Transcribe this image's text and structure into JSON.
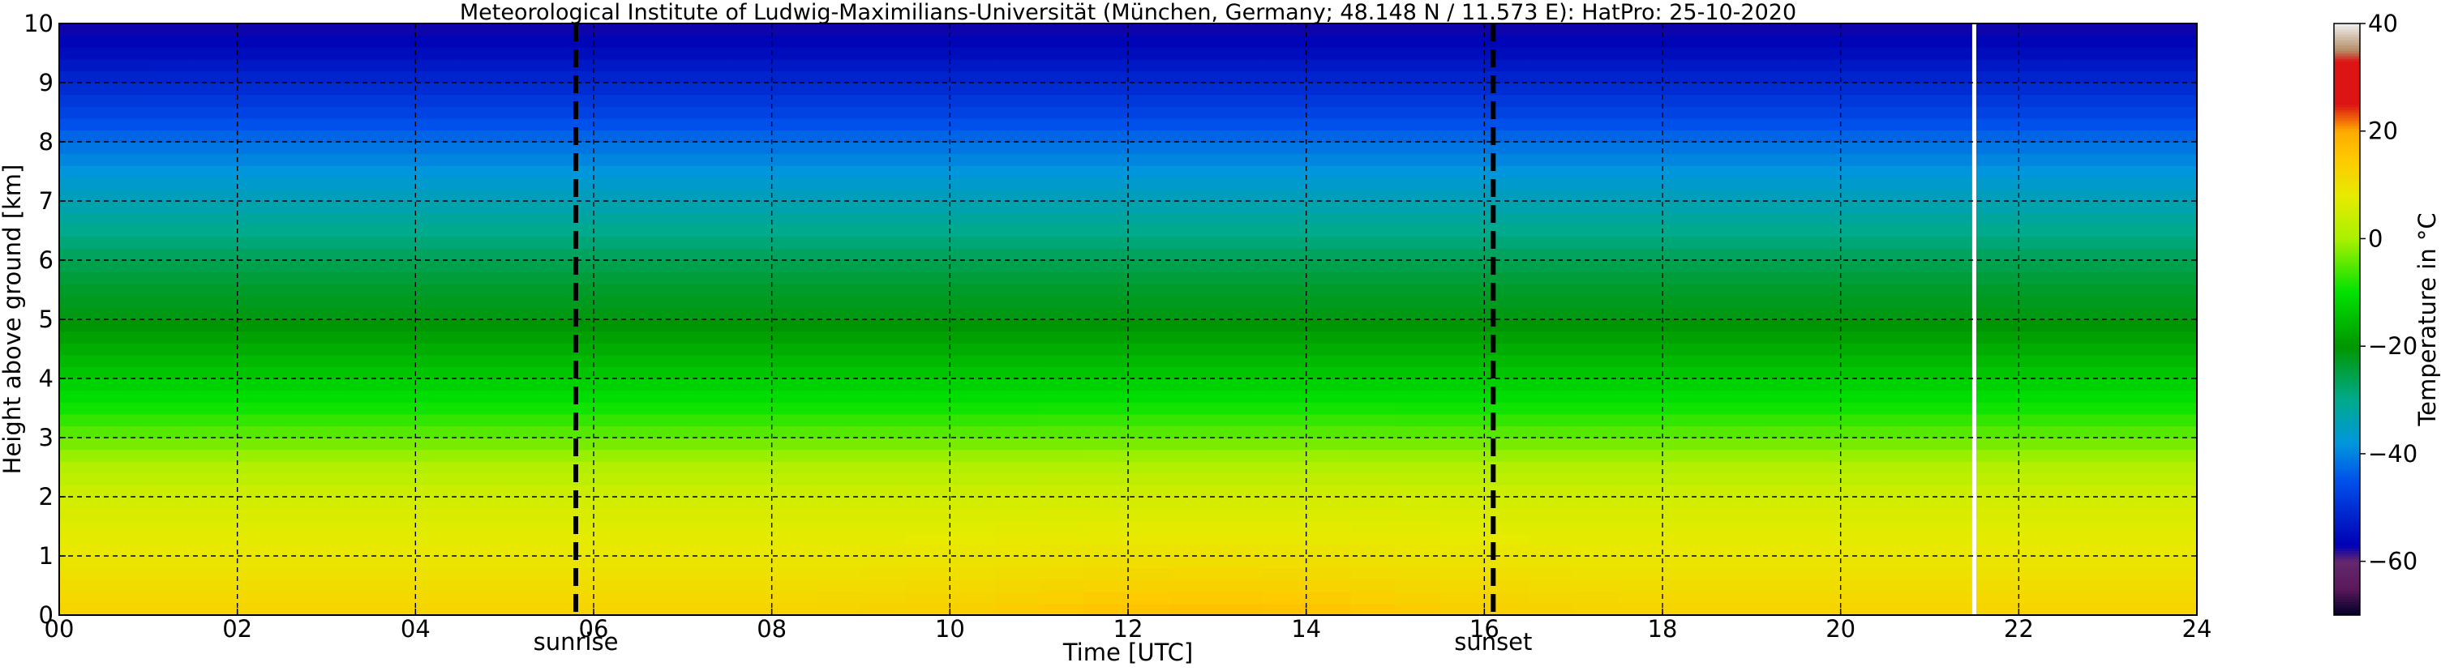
{
  "chart_data": {
    "type": "heatmap",
    "title": "Meteorological Institute of Ludwig-Maximilians-Universität (München, Germany; 48.148 N / 11.573 E):    HatPro: 25-10-2020",
    "xlabel": "Time [UTC]",
    "ylabel": "Height above ground [km]",
    "xlim": [
      0,
      24
    ],
    "ylim": [
      0,
      10
    ],
    "x_ticks": [
      0,
      2,
      4,
      6,
      8,
      10,
      12,
      14,
      16,
      18,
      20,
      22,
      24
    ],
    "x_tick_labels": [
      "00",
      "02",
      "04",
      "06",
      "08",
      "10",
      "12",
      "14",
      "16",
      "18",
      "20",
      "22",
      "24"
    ],
    "y_ticks": [
      0,
      1,
      2,
      3,
      4,
      5,
      6,
      7,
      8,
      9,
      10
    ],
    "y_tick_labels": [
      "0",
      "1",
      "2",
      "3",
      "4",
      "5",
      "6",
      "7",
      "8",
      "9",
      "10"
    ],
    "grid": true,
    "annotations": [
      {
        "label": "sunrise",
        "x": 5.8
      },
      {
        "label": "sunset",
        "x": 16.1
      }
    ],
    "missing_data_x": 21.5,
    "colorbar": {
      "label": "Temperature in $^\\circ$C",
      "range": [
        -70,
        40
      ],
      "ticks": [
        -60,
        -40,
        -20,
        0,
        20,
        40
      ],
      "tick_labels": [
        "−60",
        "−40",
        "−20",
        "0",
        "20",
        "40"
      ],
      "placement": "right"
    },
    "temperature_profile": {
      "height_km": [
        0,
        0.5,
        1,
        1.5,
        2,
        2.5,
        3,
        3.5,
        4,
        4.5,
        5,
        5.5,
        6,
        6.5,
        7,
        7.5,
        8,
        8.5,
        9,
        9.5,
        10
      ],
      "temperature_c": [
        13,
        11,
        9,
        7,
        5,
        1,
        -4,
        -9,
        -13,
        -17,
        -21,
        -23,
        -26,
        -30,
        -34,
        -38,
        -42,
        -47,
        -51,
        -55,
        -58
      ]
    },
    "warm_anomaly": {
      "peak_x": 13,
      "peak_height_km": 0,
      "delta_c": 4
    }
  }
}
